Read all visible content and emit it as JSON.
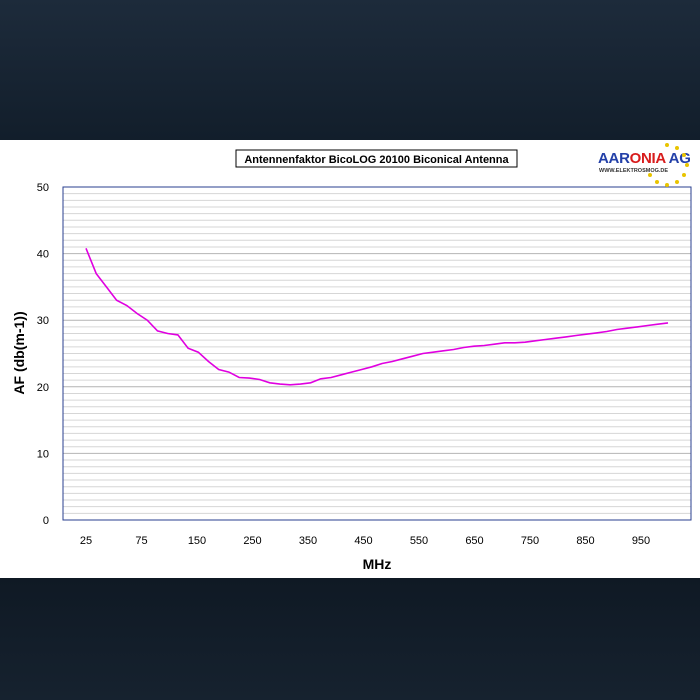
{
  "chart_data": {
    "type": "line",
    "title": "Antennenfaktor BicoLOG 20100 Biconical Antenna",
    "xlabel": "MHz",
    "ylabel": "AF (db(m-1))",
    "x_ticks": [
      "25",
      "75",
      "150",
      "250",
      "350",
      "450",
      "550",
      "650",
      "750",
      "850",
      "950"
    ],
    "y_ticks": [
      0,
      10,
      20,
      30,
      40,
      50
    ],
    "ylim": [
      0,
      50
    ],
    "grid": true,
    "line_color": "#e000e0",
    "series": [
      {
        "values": [
          40.8,
          37.0,
          35.0,
          33.0,
          32.2,
          31.0,
          30.0,
          28.4,
          28.0,
          27.8,
          25.8,
          25.2,
          23.8,
          22.6,
          22.2,
          21.4,
          21.3,
          21.1,
          20.6,
          20.4,
          20.3,
          20.4,
          20.6,
          21.2,
          21.4,
          21.8,
          22.2,
          22.6,
          23.0,
          23.5,
          23.8,
          24.2,
          24.6,
          25.0,
          25.2,
          25.4,
          25.6,
          25.9,
          26.1,
          26.2,
          26.4,
          26.6,
          26.6,
          26.7,
          26.9,
          27.1,
          27.3,
          27.5,
          27.7,
          27.9,
          28.1,
          28.3,
          28.6,
          28.8,
          29.0,
          29.2,
          29.4,
          29.6
        ]
      }
    ]
  },
  "logo": {
    "brand_part1": "AAR",
    "brand_part2": "ONIA",
    "brand_part3": " AG",
    "url": "WWW.ELEKTROSMOG.DE"
  }
}
